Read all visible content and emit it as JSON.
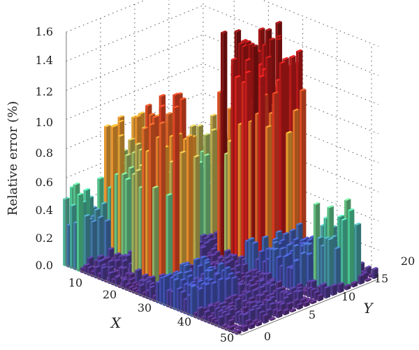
{
  "chart_data": {
    "type": "bar3d",
    "title": "",
    "zlabel": "Relative error (%)",
    "xlabel": "X",
    "ylabel": "Y",
    "zlim": [
      0,
      1.6
    ],
    "xlim": [
      1,
      52
    ],
    "ylim": [
      0,
      20
    ],
    "z_ticks": [
      "0.0",
      "0.2",
      "0.4",
      "0.6",
      "0.8",
      "1.0",
      "1.2",
      "1.4",
      "1.6"
    ],
    "x_ticks": [
      "10",
      "20",
      "30",
      "40",
      "50"
    ],
    "y_ticks": [
      "0",
      "5",
      "10",
      "15",
      "20"
    ],
    "grid": true,
    "colormap": [
      "#5a2a7a",
      "#3f52b5",
      "#4ccf9a",
      "#f0a030",
      "#dd1f1f",
      "#7a0f0f"
    ],
    "regions": [
      {
        "x": [
          20,
          32
        ],
        "y": [
          13,
          19
        ],
        "peak": 1.57
      },
      {
        "x": [
          15,
          21
        ],
        "y": [
          3,
          9
        ],
        "peak": 1.2
      },
      {
        "x": [
          3,
          9
        ],
        "y": [
          5,
          12
        ],
        "peak": 0.95
      },
      {
        "x": [
          9,
          14
        ],
        "y": [
          12,
          18
        ],
        "peak": 0.8
      },
      {
        "x": [
          1,
          5
        ],
        "y": [
          0,
          4
        ],
        "peak": 0.55
      },
      {
        "x": [
          46,
          50
        ],
        "y": [
          14,
          18
        ],
        "peak": 0.58
      },
      {
        "x": [
          30,
          44
        ],
        "y": [
          12,
          18
        ],
        "peak": 0.25
      },
      {
        "x": [
          28,
          38
        ],
        "y": [
          0,
          6
        ],
        "peak": 0.22
      }
    ]
  }
}
